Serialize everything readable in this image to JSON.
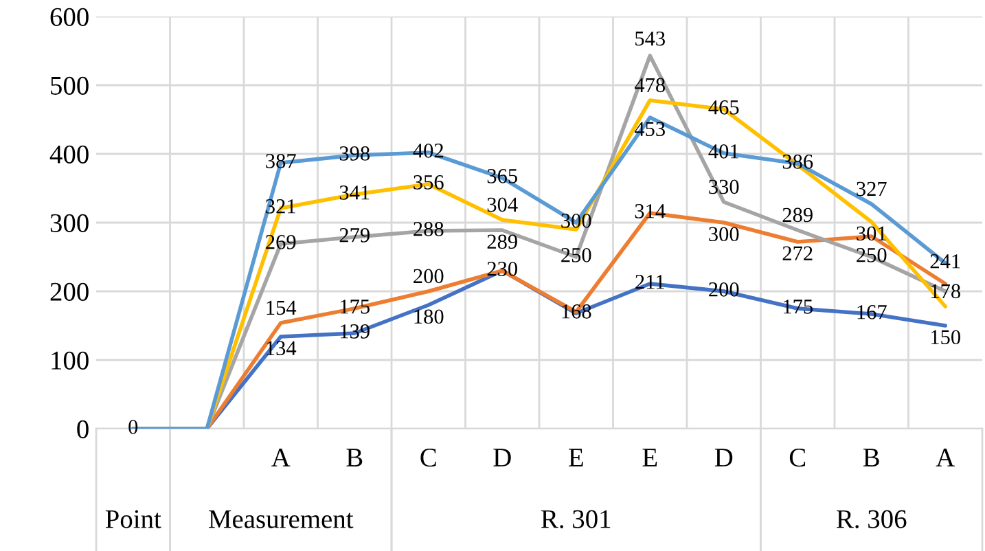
{
  "chart_data": {
    "type": "line",
    "categories": [
      null,
      null,
      "A",
      "B",
      "C",
      "D",
      "E",
      "E",
      "D",
      "C",
      "B",
      "A"
    ],
    "annotations": [
      "Point",
      "Measurement",
      "R. 301",
      "R. 306"
    ],
    "series": [
      {
        "color": "#4472c4",
        "values": [
          0,
          0,
          134,
          139,
          180,
          230,
          168,
          211,
          200,
          175,
          167,
          150
        ],
        "value_labels": [
          "0",
          null,
          "134",
          "139",
          "180",
          "230",
          "168",
          "211",
          "200",
          "175",
          "167",
          "150"
        ]
      },
      {
        "color": "#ed7d31",
        "values": [
          0,
          0,
          154,
          175,
          200,
          230,
          170,
          314,
          300,
          272,
          280,
          211
        ],
        "value_labels": [
          null,
          null,
          "154",
          "175",
          "200",
          null,
          null,
          "314",
          "300",
          "272",
          null,
          null
        ]
      },
      {
        "color": "#a5a5a5",
        "values": [
          0,
          0,
          269,
          279,
          288,
          289,
          250,
          543,
          330,
          289,
          250,
          200
        ],
        "value_labels": [
          null,
          null,
          "269",
          "279",
          "288",
          "289",
          "250",
          "543",
          "330",
          "289",
          "250",
          null
        ]
      },
      {
        "color": "#ffc000",
        "values": [
          0,
          0,
          321,
          341,
          356,
          304,
          290,
          478,
          465,
          384,
          301,
          178
        ],
        "value_labels": [
          null,
          null,
          "321",
          "341",
          "356",
          "304",
          null,
          "478",
          "465",
          null,
          "301",
          "178"
        ]
      },
      {
        "color": "#5b9bd5",
        "values": [
          0,
          0,
          387,
          398,
          402,
          365,
          300,
          453,
          401,
          386,
          327,
          241
        ],
        "value_labels": [
          null,
          null,
          "387",
          "398",
          "402",
          "365",
          "300",
          "453",
          "401",
          "386",
          "327",
          "241"
        ]
      }
    ],
    "ylim": [
      0,
      600
    ],
    "yticks": [
      0,
      100,
      200,
      300,
      400,
      500,
      600
    ],
    "grid": true,
    "marker": "none",
    "line_style": "solid"
  }
}
